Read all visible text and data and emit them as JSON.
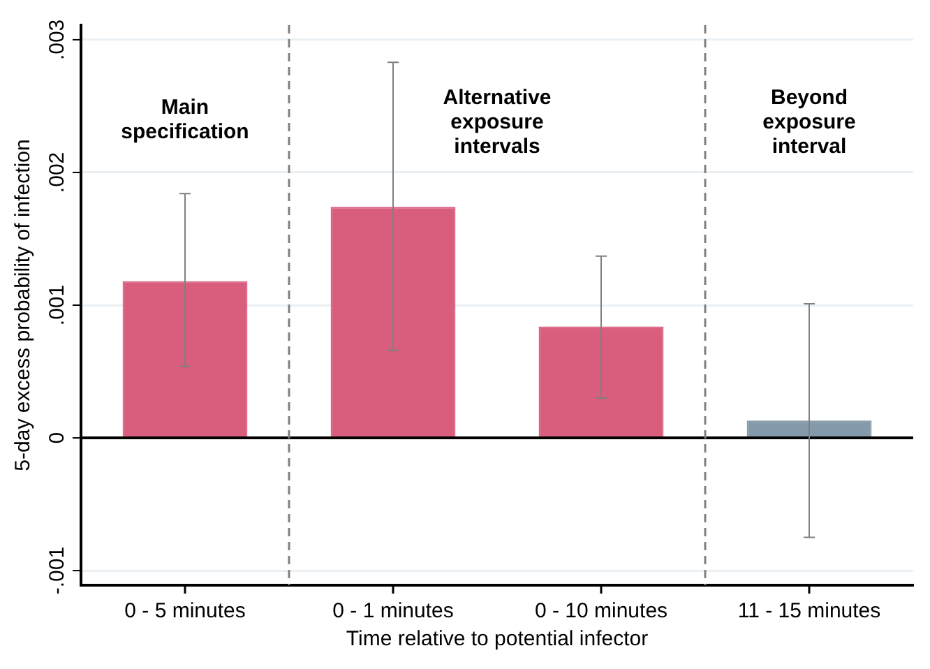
{
  "chart_data": {
    "type": "bar",
    "xlabel": "Time relative to potential infector",
    "ylabel": "5-day excess probability of infection",
    "categories": [
      "0 - 5 minutes",
      "0 - 1 minutes",
      "0 - 10 minutes",
      "11 - 15 minutes"
    ],
    "values": [
      0.00118,
      0.00174,
      0.00084,
      0.00013
    ],
    "colors": [
      "#d95d7c",
      "#d95d7c",
      "#d95d7c",
      "#8499a9"
    ],
    "errors": [
      [
        0.00054,
        0.00184
      ],
      [
        0.00066,
        0.00283
      ],
      [
        0.0003,
        0.00137
      ],
      [
        -0.00075,
        0.00101
      ]
    ],
    "ylim": [
      -0.00111,
      0.00311
    ],
    "yticks": [
      {
        "value": -0.001,
        "label": "-.001"
      },
      {
        "value": 0,
        "label": "0"
      },
      {
        "value": 0.001,
        "label": ".001"
      },
      {
        "value": 0.002,
        "label": ".002"
      },
      {
        "value": 0.003,
        "label": ".003"
      }
    ],
    "grid": "y",
    "legend": false,
    "ref_lines": [
      {
        "axis": "y",
        "value": 0,
        "color": "#000000",
        "line_style": "solid"
      }
    ],
    "annotations": [
      "Main\nspecification",
      "Alternative\nexposure\nintervals",
      "Beyond\nexposure\ninterval"
    ]
  }
}
